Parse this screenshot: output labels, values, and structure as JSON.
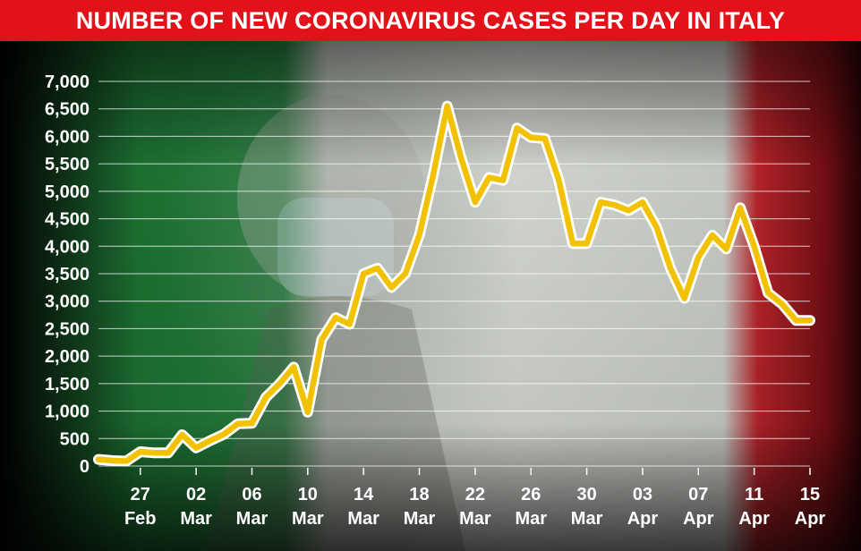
{
  "header": {
    "title": "NUMBER OF NEW CORONAVIRUS CASES PER DAY IN ITALY"
  },
  "colors": {
    "banner": "#e2121b",
    "line": "#f2c200",
    "line_outline": "#ffffff",
    "gridline": "#ffffff",
    "text": "#ffffff",
    "flag_green": "#1f8a3d",
    "flag_white": "#e8ece6",
    "flag_red": "#c8202a"
  },
  "background_image": {
    "description_icon": "italian-flag-with-masked-woman-photo"
  },
  "chart_data": {
    "type": "line",
    "title": "NUMBER OF NEW CORONAVIRUS CASES PER DAY IN ITALY",
    "xlabel": "",
    "ylabel": "",
    "ylim": [
      0,
      7000
    ],
    "yticks": [
      {
        "value": 0,
        "label": "0"
      },
      {
        "value": 500,
        "label": "500"
      },
      {
        "value": 1000,
        "label": "1,000"
      },
      {
        "value": 1500,
        "label": "1,500"
      },
      {
        "value": 2000,
        "label": "2,000"
      },
      {
        "value": 2500,
        "label": "2,500"
      },
      {
        "value": 3000,
        "label": "3,000"
      },
      {
        "value": 3500,
        "label": "3,500"
      },
      {
        "value": 4000,
        "label": "4,000"
      },
      {
        "value": 4500,
        "label": "4,500"
      },
      {
        "value": 5000,
        "label": "5,000"
      },
      {
        "value": 5500,
        "label": "5,500"
      },
      {
        "value": 6000,
        "label": "6,000"
      },
      {
        "value": 6500,
        "label": "6,500"
      },
      {
        "value": 7000,
        "label": "7,000"
      }
    ],
    "xticks": [
      {
        "x": "2020-02-27",
        "day": "27",
        "month": "Feb"
      },
      {
        "x": "2020-03-02",
        "day": "02",
        "month": "Mar"
      },
      {
        "x": "2020-03-06",
        "day": "06",
        "month": "Mar"
      },
      {
        "x": "2020-03-10",
        "day": "10",
        "month": "Mar"
      },
      {
        "x": "2020-03-14",
        "day": "14",
        "month": "Mar"
      },
      {
        "x": "2020-03-18",
        "day": "18",
        "month": "Mar"
      },
      {
        "x": "2020-03-22",
        "day": "22",
        "month": "Mar"
      },
      {
        "x": "2020-03-26",
        "day": "26",
        "month": "Mar"
      },
      {
        "x": "2020-03-30",
        "day": "30",
        "month": "Mar"
      },
      {
        "x": "2020-04-03",
        "day": "03",
        "month": "Apr"
      },
      {
        "x": "2020-04-07",
        "day": "07",
        "month": "Apr"
      },
      {
        "x": "2020-04-11",
        "day": "11",
        "month": "Apr"
      },
      {
        "x": "2020-04-15",
        "day": "15",
        "month": "Apr"
      }
    ],
    "grid": true,
    "legend": "none",
    "series": [
      {
        "x": [
          "2020-02-24",
          "2020-02-25",
          "2020-02-26",
          "2020-02-27",
          "2020-02-28",
          "2020-02-29",
          "2020-03-01",
          "2020-03-02",
          "2020-03-03",
          "2020-03-04",
          "2020-03-05",
          "2020-03-06",
          "2020-03-07",
          "2020-03-08",
          "2020-03-09",
          "2020-03-10",
          "2020-03-11",
          "2020-03-12",
          "2020-03-13",
          "2020-03-14",
          "2020-03-15",
          "2020-03-16",
          "2020-03-17",
          "2020-03-18",
          "2020-03-19",
          "2020-03-20",
          "2020-03-21",
          "2020-03-22",
          "2020-03-23",
          "2020-03-24",
          "2020-03-25",
          "2020-03-26",
          "2020-03-27",
          "2020-03-28",
          "2020-03-29",
          "2020-03-30",
          "2020-03-31",
          "2020-04-01",
          "2020-04-02",
          "2020-04-03",
          "2020-04-04",
          "2020-04-05",
          "2020-04-06",
          "2020-04-07",
          "2020-04-08",
          "2020-04-09",
          "2020-04-10",
          "2020-04-11",
          "2020-04-12",
          "2020-04-13",
          "2020-04-14",
          "2020-04-15"
        ],
        "values": [
          120,
          100,
          90,
          260,
          240,
          240,
          570,
          330,
          460,
          580,
          770,
          780,
          1250,
          1500,
          1800,
          980,
          2300,
          2700,
          2580,
          3500,
          3600,
          3250,
          3500,
          4200,
          5300,
          6550,
          5600,
          4800,
          5250,
          5200,
          6150,
          5980,
          5960,
          5200,
          4050,
          4050,
          4800,
          4750,
          4650,
          4800,
          4350,
          3600,
          3050,
          3800,
          4200,
          3950,
          4700,
          4000,
          3150,
          2950,
          2650,
          2650
        ]
      }
    ]
  }
}
